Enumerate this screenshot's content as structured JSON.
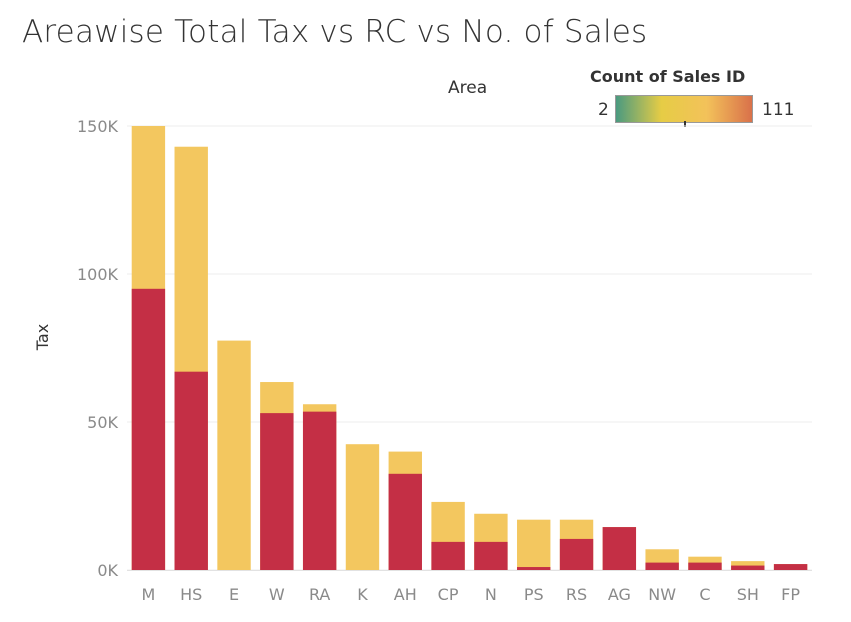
{
  "title": "Areawise Total Tax vs RC vs No. of Sales",
  "legend": {
    "top_label": "Area",
    "title": "Count of Sales ID",
    "min_label": "2",
    "max_label": "111",
    "gradient_colors": [
      "#4a9a80",
      "#e6cc45",
      "#f3c25a",
      "#d9714a"
    ],
    "marker_value": 70
  },
  "chart_data": {
    "type": "bar",
    "stacked": "overlay",
    "categories": [
      "M",
      "HS",
      "E",
      "W",
      "RA",
      "K",
      "AH",
      "CP",
      "N",
      "PS",
      "RS",
      "AG",
      "NW",
      "C",
      "SH",
      "FP"
    ],
    "series": [
      {
        "values": [
          150000,
          143000,
          77500,
          63500,
          56000,
          42500,
          40000,
          23000,
          19000,
          17000,
          17000,
          14500,
          7000,
          4500,
          3000,
          2000
        ],
        "color": "#f3c75f"
      },
      {
        "values": [
          95000,
          67000,
          0,
          53000,
          53500,
          0,
          32500,
          9500,
          9500,
          1000,
          10500,
          14500,
          2500,
          2500,
          1500,
          2000
        ],
        "color": "#c42f45"
      }
    ],
    "ylabel": "Tax",
    "xlabel": "",
    "ylim": [
      0,
      150000
    ],
    "yticks": [
      0,
      50000,
      100000,
      150000
    ],
    "ytick_labels": [
      "0K",
      "50K",
      "100K",
      "150K"
    ],
    "grid": true
  }
}
